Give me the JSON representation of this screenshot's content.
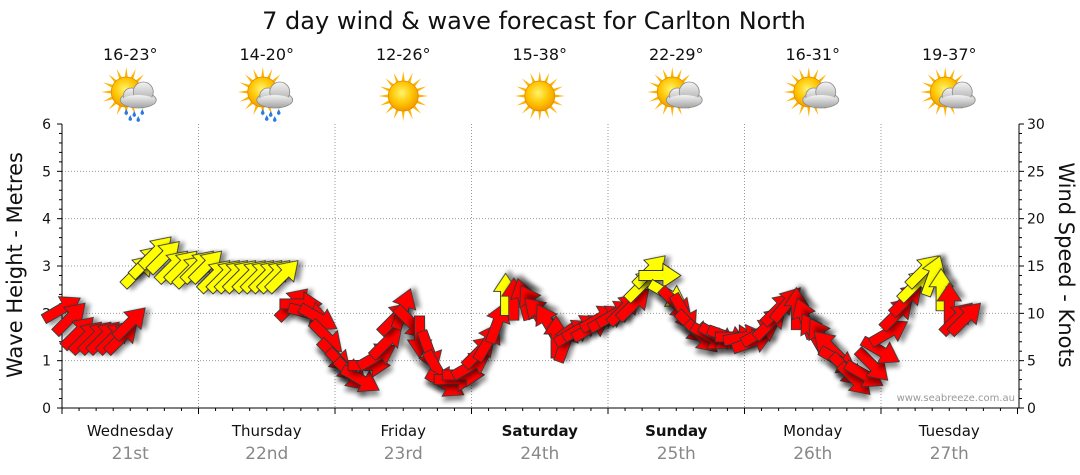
{
  "title": "7 day wind & wave forecast for Carlton North",
  "watermark": "www.seabreeze.com.au",
  "days": [
    {
      "name": "Wednesday",
      "date": "21st",
      "temp": "16-23°",
      "icon": "sun-cloud-rain-icon",
      "bold": false
    },
    {
      "name": "Thursday",
      "date": "22nd",
      "temp": "14-20°",
      "icon": "sun-cloud-rain-icon",
      "bold": false
    },
    {
      "name": "Friday",
      "date": "23rd",
      "temp": "12-26°",
      "icon": "sun-icon",
      "bold": false
    },
    {
      "name": "Saturday",
      "date": "24th",
      "temp": "15-38°",
      "icon": "sun-icon",
      "bold": true
    },
    {
      "name": "Sunday",
      "date": "25th",
      "temp": "22-29°",
      "icon": "sun-cloud-icon",
      "bold": true
    },
    {
      "name": "Monday",
      "date": "26th",
      "temp": "16-31°",
      "icon": "sun-cloud-icon",
      "bold": false
    },
    {
      "name": "Tuesday",
      "date": "27th",
      "temp": "19-37°",
      "icon": "sun-cloud-icon",
      "bold": false
    }
  ],
  "colors": {
    "strong": "#ffff00",
    "moderate": "#ff0000",
    "outline": "#333333",
    "grid": "#999999"
  },
  "chart_data": {
    "type": "line",
    "title": "7 day wind & wave forecast for Carlton North",
    "ylabel_left": "Wave Height - Metres",
    "ylabel_right": "Wind Speed - Knots",
    "ylim_left": [
      0,
      6
    ],
    "ylim_right": [
      0,
      30
    ],
    "yticks_left": [
      "0",
      "1",
      "2",
      "3",
      "4",
      "5",
      "6"
    ],
    "yticks_right": [
      "0",
      "5",
      "10",
      "15",
      "20",
      "25",
      "30"
    ],
    "x_unit": "day offset (0 = start of Wednesday 21st)",
    "xlim": [
      0,
      7
    ],
    "grid": true,
    "series": [
      {
        "values_knots": [
          [
            0.0,
            10.5
          ],
          [
            0.06,
            9.5
          ],
          [
            0.12,
            8.0
          ],
          [
            0.18,
            7.5
          ],
          [
            0.25,
            7.5
          ],
          [
            0.31,
            7.5
          ],
          [
            0.38,
            7.5
          ],
          [
            0.44,
            7.5
          ],
          [
            0.5,
            9.0
          ],
          [
            0.56,
            14.5
          ],
          [
            0.62,
            15.5
          ],
          [
            0.69,
            16.5
          ],
          [
            0.75,
            16.0
          ],
          [
            0.81,
            15.0
          ],
          [
            0.88,
            15.0
          ],
          [
            0.94,
            14.5
          ],
          [
            1.0,
            15.0
          ],
          [
            1.06,
            15.0
          ],
          [
            1.12,
            14.0
          ],
          [
            1.19,
            14.0
          ],
          [
            1.25,
            14.0
          ],
          [
            1.31,
            14.0
          ],
          [
            1.38,
            14.0
          ],
          [
            1.44,
            14.0
          ],
          [
            1.5,
            14.0
          ],
          [
            1.56,
            14.0
          ],
          [
            1.62,
            14.0
          ],
          [
            1.69,
            11.0
          ],
          [
            1.75,
            11.0
          ],
          [
            1.81,
            10.0
          ],
          [
            1.88,
            9.5
          ],
          [
            1.94,
            7.5
          ],
          [
            2.0,
            5.5
          ],
          [
            2.06,
            4.5
          ],
          [
            2.12,
            3.5
          ],
          [
            2.19,
            3.0
          ],
          [
            2.25,
            4.5
          ],
          [
            2.31,
            5.5
          ],
          [
            2.38,
            7.0
          ],
          [
            2.44,
            9.5
          ],
          [
            2.5,
            10.5
          ],
          [
            2.56,
            9.0
          ],
          [
            2.62,
            7.5
          ],
          [
            2.69,
            6.0
          ],
          [
            2.75,
            4.0
          ],
          [
            2.81,
            2.5
          ],
          [
            2.88,
            3.0
          ],
          [
            2.94,
            3.5
          ],
          [
            3.0,
            4.5
          ],
          [
            3.06,
            6.0
          ],
          [
            3.12,
            7.0
          ],
          [
            3.19,
            9.0
          ],
          [
            3.25,
            12.0
          ],
          [
            3.31,
            11.5
          ],
          [
            3.38,
            11.5
          ],
          [
            3.44,
            11.0
          ],
          [
            3.5,
            10.0
          ],
          [
            3.56,
            9.0
          ],
          [
            3.62,
            7.5
          ],
          [
            3.69,
            7.0
          ],
          [
            3.75,
            8.0
          ],
          [
            3.81,
            8.5
          ],
          [
            3.88,
            8.5
          ],
          [
            3.94,
            9.5
          ],
          [
            4.0,
            9.5
          ],
          [
            4.06,
            10.0
          ],
          [
            4.12,
            10.5
          ],
          [
            4.19,
            11.0
          ],
          [
            4.25,
            13.0
          ],
          [
            4.31,
            14.5
          ],
          [
            4.38,
            14.0
          ],
          [
            4.44,
            12.0
          ],
          [
            4.5,
            11.0
          ],
          [
            4.56,
            10.0
          ],
          [
            4.62,
            8.5
          ],
          [
            4.69,
            7.5
          ],
          [
            4.75,
            7.5
          ],
          [
            4.81,
            7.5
          ],
          [
            4.88,
            7.5
          ],
          [
            4.94,
            7.5
          ],
          [
            5.0,
            7.5
          ],
          [
            5.06,
            7.0
          ],
          [
            5.12,
            8.0
          ],
          [
            5.19,
            9.0
          ],
          [
            5.25,
            10.5
          ],
          [
            5.31,
            11.0
          ],
          [
            5.38,
            10.5
          ],
          [
            5.44,
            9.5
          ],
          [
            5.5,
            8.0
          ],
          [
            5.56,
            7.5
          ],
          [
            5.62,
            6.5
          ],
          [
            5.69,
            5.0
          ],
          [
            5.75,
            4.0
          ],
          [
            5.81,
            3.0
          ],
          [
            5.88,
            3.5
          ],
          [
            5.94,
            4.5
          ],
          [
            6.0,
            6.0
          ],
          [
            6.06,
            8.0
          ],
          [
            6.12,
            10.0
          ],
          [
            6.19,
            11.5
          ],
          [
            6.25,
            13.0
          ],
          [
            6.31,
            14.5
          ],
          [
            6.38,
            14.0
          ],
          [
            6.44,
            12.5
          ],
          [
            6.5,
            11.0
          ],
          [
            6.56,
            9.5
          ],
          [
            6.62,
            9.5
          ]
        ],
        "directions_deg": [
          240,
          225,
          225,
          225,
          225,
          225,
          225,
          225,
          225,
          225,
          225,
          225,
          225,
          225,
          225,
          225,
          225,
          225,
          225,
          225,
          225,
          225,
          225,
          225,
          225,
          225,
          225,
          225,
          270,
          285,
          300,
          315,
          315,
          315,
          315,
          300,
          270,
          240,
          225,
          225,
          200,
          315,
          0,
          340,
          330,
          300,
          270,
          270,
          240,
          225,
          210,
          200,
          180,
          180,
          165,
          150,
          135,
          150,
          180,
          200,
          240,
          240,
          240,
          240,
          240,
          240,
          225,
          225,
          225,
          225,
          270,
          300,
          315,
          330,
          315,
          315,
          300,
          300,
          290,
          270,
          260,
          250,
          240,
          225,
          225,
          220,
          180,
          160,
          150,
          150,
          135,
          300,
          315,
          315,
          300,
          315,
          300,
          240,
          225,
          225,
          225,
          225,
          200,
          180,
          180,
          225,
          225
        ]
      }
    ]
  }
}
